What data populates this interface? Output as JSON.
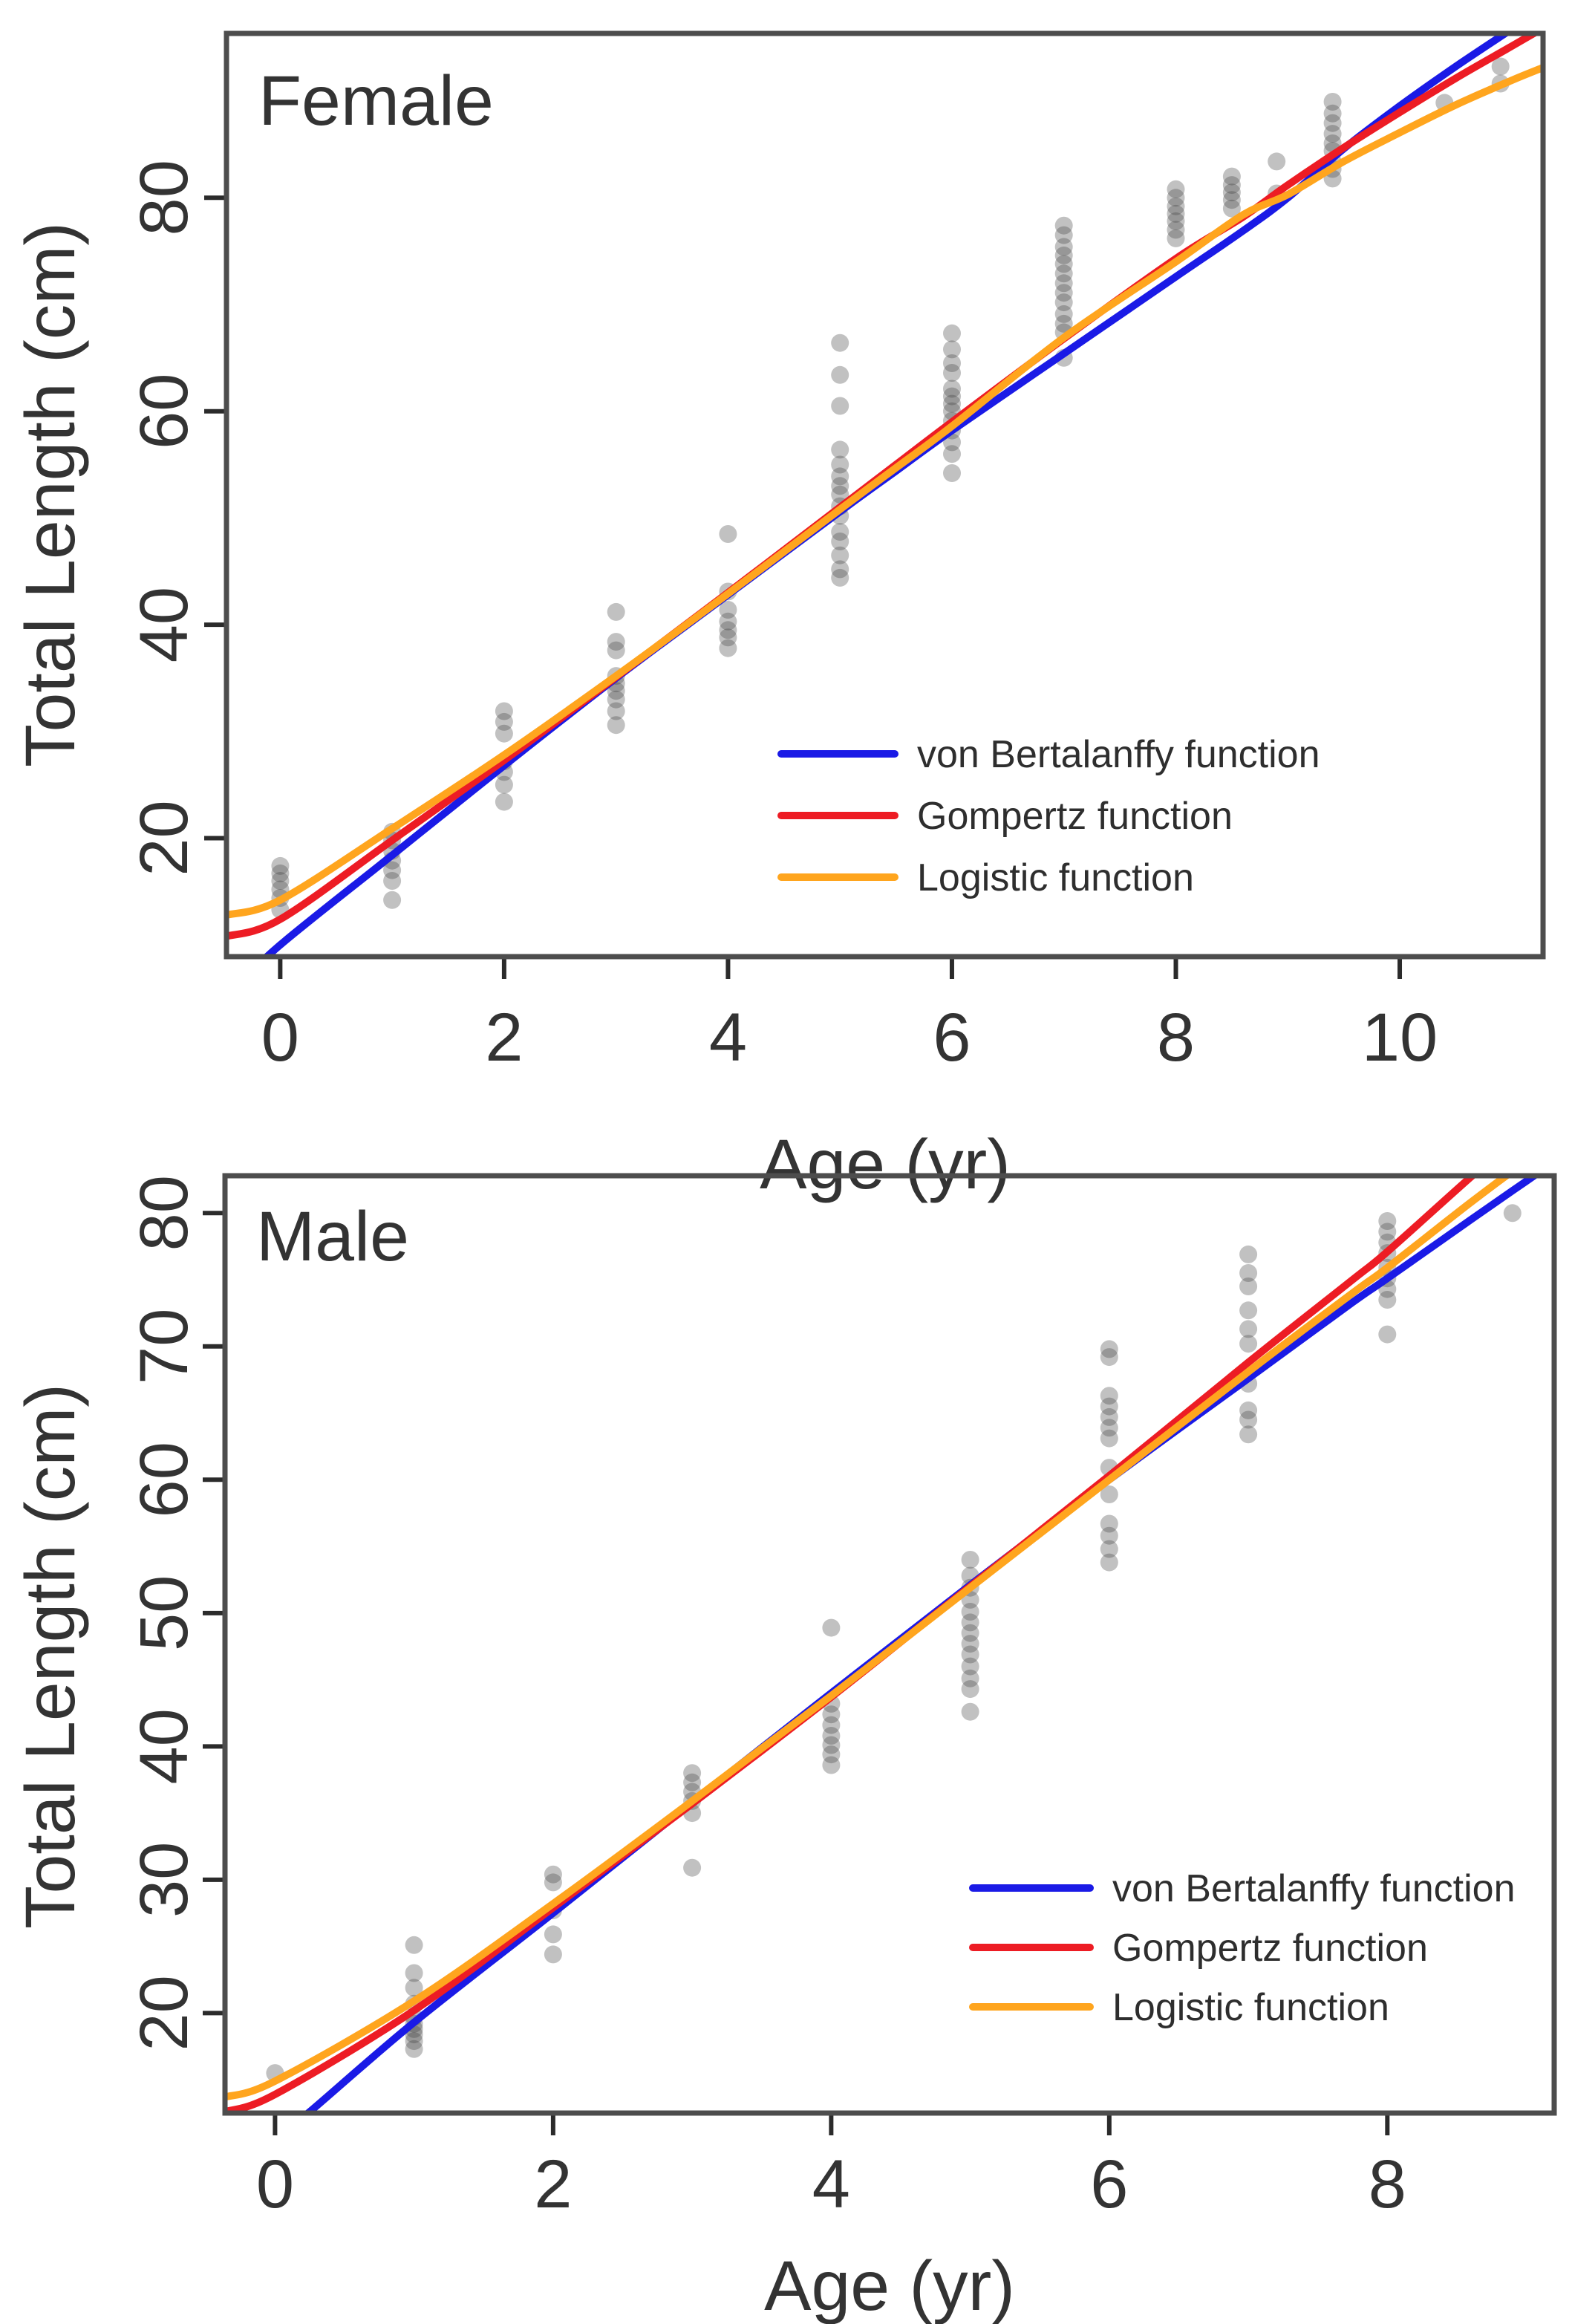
{
  "figure": {
    "background": "#ffffff",
    "point_color": "#3f3f3f",
    "point_opacity": 0.32,
    "box_color": "#4d4d4d",
    "tick_color": "#2b2b2b",
    "text_color": "#333333",
    "accent_blue": "#1a1ae6",
    "accent_red": "#ed1c24",
    "accent_orange": "#ffa51e"
  },
  "chart_data": [
    {
      "type": "scatter",
      "title": "Female",
      "xlabel": "Age (yr)",
      "ylabel": "Total Length (cm)",
      "xlim": [
        -0.48,
        11.28
      ],
      "ylim": [
        8.9,
        95.4
      ],
      "xticks": [
        0,
        2,
        4,
        6,
        8,
        10
      ],
      "yticks": [
        20,
        40,
        60,
        80
      ],
      "grid": false,
      "legend_position": "inside-lower-right",
      "clusters": [
        {
          "age": 0,
          "lengths": [
            13.3,
            14.4,
            15.2,
            16.0,
            16.7,
            17.4
          ]
        },
        {
          "age": 1,
          "lengths": [
            14.2,
            16.0,
            17.0,
            17.9,
            18.8,
            19.8,
            20.6
          ]
        },
        {
          "age": 2,
          "lengths": [
            23.4,
            25.0,
            26.2,
            27.2,
            29.8,
            30.9,
            31.9
          ]
        },
        {
          "age": 3,
          "lengths": [
            30.6,
            31.9,
            33.0,
            33.8,
            34.5,
            35.2,
            37.6,
            38.4,
            41.2
          ]
        },
        {
          "age": 4,
          "lengths": [
            37.8,
            38.8,
            39.5,
            40.3,
            41.4,
            43.1,
            48.5
          ]
        },
        {
          "age": 5,
          "lengths": [
            44.4,
            45.2,
            46.5,
            47.8,
            48.7,
            50.2,
            51.1,
            52.2,
            53.0,
            53.9,
            55.0,
            56.4,
            60.5,
            63.4,
            66.4
          ]
        },
        {
          "age": 6,
          "lengths": [
            54.2,
            56.0,
            57.1,
            58.2,
            59.1,
            60.0,
            60.7,
            61.4,
            62.1,
            63.6,
            64.5,
            65.8,
            67.3
          ]
        },
        {
          "age": 7,
          "lengths": [
            65.0,
            67.4,
            68.2,
            69.1,
            70.2,
            71.1,
            72.0,
            72.9,
            73.8,
            74.6,
            75.4,
            76.5,
            77.4
          ]
        },
        {
          "age": 8,
          "lengths": [
            76.2,
            77.0,
            77.8,
            78.5,
            79.2,
            80.0,
            80.8
          ]
        },
        {
          "age": 8.5,
          "lengths": [
            79.0,
            79.8,
            80.5,
            81.2,
            82.0
          ]
        },
        {
          "age": 8.9,
          "lengths": [
            80.4,
            83.4
          ]
        },
        {
          "age": 9.4,
          "lengths": [
            81.8,
            82.7,
            83.4,
            84.4,
            85.1,
            86.0,
            87.0,
            87.9,
            89.0
          ]
        },
        {
          "age": 10.4,
          "lengths": [
            88.9
          ]
        },
        {
          "age": 10.9,
          "lengths": [
            90.7,
            92.3
          ]
        }
      ],
      "series": [
        {
          "name": "von Bertalanffy function",
          "color": "#1a1ae6",
          "x": [
            -0.48,
            0,
            1,
            2,
            3,
            4,
            5,
            5.5,
            6,
            7,
            8,
            8.6,
            9,
            9.5,
            10,
            10.5,
            11,
            11.2
          ],
          "y": [
            5.2,
            10.0,
            18.4,
            26.8,
            35.0,
            42.8,
            50.6,
            54.4,
            58.2,
            65.4,
            72.6,
            76.9,
            80.0,
            84.6,
            88.6,
            92.3,
            95.8,
            97.2
          ]
        },
        {
          "name": "Gompertz function",
          "color": "#ed1c24",
          "x": [
            -0.48,
            0,
            1,
            2,
            3,
            4,
            5,
            5.5,
            6,
            7,
            8,
            8.6,
            9,
            9.5,
            10,
            10.5,
            11,
            11.28
          ],
          "y": [
            10.8,
            12.4,
            19.8,
            27.3,
            35.1,
            43.0,
            51.0,
            55.0,
            59.0,
            66.8,
            74.3,
            78.2,
            81.2,
            84.7,
            88.0,
            91.2,
            94.2,
            95.9
          ]
        },
        {
          "name": "Logistic function",
          "color": "#ffa51e",
          "x": [
            -0.48,
            0,
            1,
            2,
            3,
            4,
            5,
            5.5,
            6,
            7,
            8,
            8.6,
            9,
            9.5,
            10,
            10.5,
            11,
            11.28
          ],
          "y": [
            12.8,
            14.2,
            20.9,
            27.8,
            35.2,
            42.9,
            50.8,
            54.7,
            58.6,
            66.9,
            74.0,
            78.4,
            80.3,
            83.4,
            86.1,
            88.7,
            91.0,
            92.2
          ]
        }
      ]
    },
    {
      "type": "scatter",
      "title": "Male",
      "xlabel": "Age (yr)",
      "ylabel": "Total Length (cm)",
      "xlim": [
        -0.36,
        9.2
      ],
      "ylim": [
        12.5,
        82.8
      ],
      "xticks": [
        0,
        2,
        4,
        6,
        8
      ],
      "yticks": [
        20,
        30,
        40,
        50,
        60,
        70,
        80
      ],
      "grid": false,
      "legend_position": "inside-lower-right",
      "clusters": [
        {
          "age": 0,
          "lengths": [
            15.5
          ]
        },
        {
          "age": 1,
          "lengths": [
            17.3,
            17.9,
            18.4,
            18.8,
            19.2,
            19.7,
            20.7,
            21.9,
            23.0,
            25.1
          ]
        },
        {
          "age": 2,
          "lengths": [
            24.4,
            25.9,
            27.7,
            29.8,
            30.4
          ]
        },
        {
          "age": 3,
          "lengths": [
            30.9,
            35.0,
            35.9,
            36.6,
            37.3,
            38.0
          ]
        },
        {
          "age": 4,
          "lengths": [
            38.6,
            39.4,
            40.1,
            40.8,
            41.6,
            42.4,
            43.2,
            48.9
          ]
        },
        {
          "age": 5,
          "lengths": [
            42.6,
            44.3,
            45.1,
            46.0,
            46.9,
            47.7,
            48.5,
            49.3,
            50.1,
            51.0,
            51.9,
            52.8,
            54.0
          ]
        },
        {
          "age": 6,
          "lengths": [
            53.8,
            54.8,
            55.8,
            56.7,
            58.9,
            60.9,
            63.1,
            63.9,
            64.7,
            65.5,
            66.3,
            69.2,
            69.8
          ]
        },
        {
          "age": 7,
          "lengths": [
            63.4,
            64.5,
            65.2,
            67.2,
            70.2,
            71.3,
            72.7,
            74.5,
            75.5,
            76.9
          ]
        },
        {
          "age": 8,
          "lengths": [
            70.9,
            73.5,
            74.3,
            75.1,
            75.9,
            77.0,
            77.8,
            78.6,
            79.4
          ]
        },
        {
          "age": 8.9,
          "lengths": [
            80.0
          ]
        }
      ],
      "series": [
        {
          "name": "von Bertalanffy function",
          "color": "#1a1ae6",
          "x": [
            0,
            0.25,
            1,
            2,
            3,
            4,
            5,
            6,
            7,
            7.75,
            8,
            8.6,
            9,
            9.36
          ],
          "y": [
            10.5,
            12.6,
            19.3,
            27.5,
            35.8,
            44.0,
            52.1,
            60.0,
            67.6,
            73.3,
            75.1,
            79.5,
            82.4,
            85.0
          ]
        },
        {
          "name": "Gompertz function",
          "color": "#ed1c24",
          "x": [
            -0.36,
            0,
            1,
            2,
            3,
            4,
            5,
            6,
            7,
            7.75,
            8,
            8.6,
            9,
            9.36
          ],
          "y": [
            12.6,
            13.9,
            20.2,
            27.9,
            35.7,
            43.7,
            52.0,
            60.3,
            68.8,
            75.0,
            77.1,
            82.7,
            86.3,
            89.4
          ]
        },
        {
          "name": "Logistic function",
          "color": "#ffa51e",
          "x": [
            -0.36,
            0,
            1,
            2,
            3,
            4,
            5,
            6,
            7,
            7.75,
            8,
            8.6,
            9,
            9.36
          ],
          "y": [
            13.7,
            14.9,
            20.9,
            28.2,
            35.9,
            43.8,
            51.9,
            60.0,
            68.1,
            74.0,
            75.9,
            80.8,
            83.9,
            86.5
          ]
        }
      ]
    }
  ]
}
